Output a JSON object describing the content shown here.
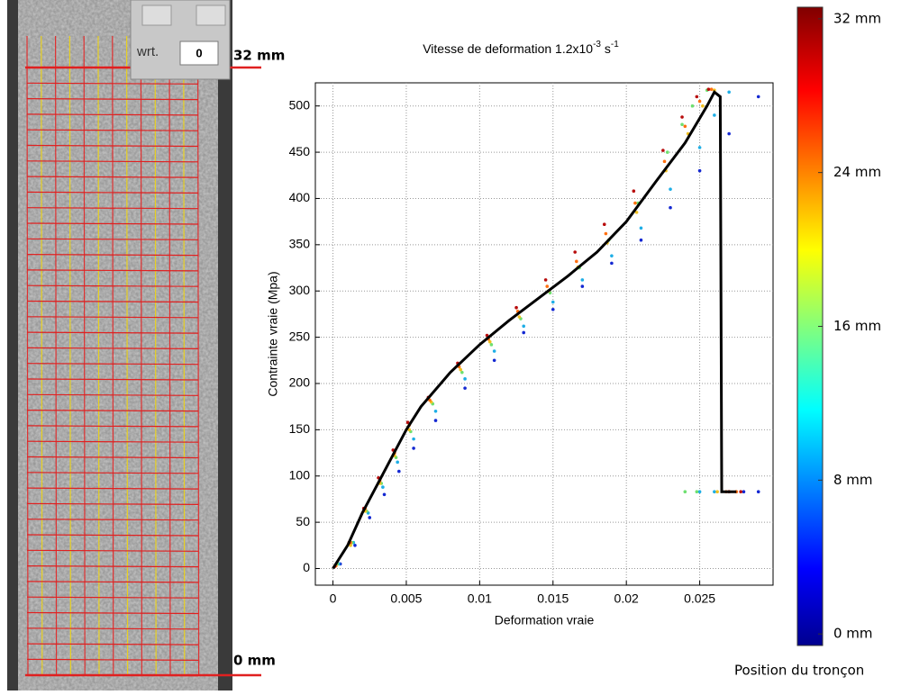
{
  "photo_panel": {
    "wrt_label": "wrt.",
    "wrt_value": "0",
    "top_label": "32 mm",
    "bottom_label": "0 mm"
  },
  "chart_data": {
    "type": "scatter",
    "title": {
      "text": "Vitesse de deformation 1.2x10",
      "exp": "-3",
      "unit": " s",
      "unit_exp": "-1"
    },
    "x_label": "Deformation vraie",
    "y_label": "Contrainte vraie (Mpa)",
    "xlim": [
      -0.0012,
      0.03
    ],
    "ylim": [
      -18,
      525
    ],
    "xticks": [
      0,
      0.005,
      0.01,
      0.015,
      0.02,
      0.025
    ],
    "yticks": [
      0,
      50,
      100,
      150,
      200,
      250,
      300,
      350,
      400,
      450,
      500
    ],
    "grid": true,
    "series": [
      {
        "style": "dots",
        "color": "#1428d2",
        "x": [
          0.0005,
          0.0015,
          0.0025,
          0.0035,
          0.0045,
          0.0055,
          0.007,
          0.009,
          0.011,
          0.013,
          0.015,
          0.017,
          0.019,
          0.021,
          0.023,
          0.025,
          0.027,
          0.029,
          0.028,
          0.029
        ],
        "y": [
          5,
          25,
          55,
          80,
          105,
          130,
          160,
          195,
          225,
          255,
          280,
          305,
          330,
          355,
          390,
          430,
          470,
          510,
          83,
          83
        ]
      },
      {
        "style": "dots",
        "color": "#1eaee6",
        "x": [
          0.0004,
          0.0014,
          0.0024,
          0.0034,
          0.0044,
          0.0055,
          0.007,
          0.009,
          0.011,
          0.013,
          0.015,
          0.017,
          0.019,
          0.021,
          0.023,
          0.025,
          0.026,
          0.027,
          0.025,
          0.026
        ],
        "y": [
          5,
          28,
          60,
          88,
          115,
          140,
          170,
          205,
          235,
          262,
          288,
          312,
          338,
          368,
          410,
          455,
          490,
          515,
          83,
          83
        ]
      },
      {
        "style": "dots",
        "color": "#6ee070",
        "x": [
          0.0003,
          0.0013,
          0.0023,
          0.0033,
          0.0043,
          0.0053,
          0.0068,
          0.0088,
          0.0108,
          0.0128,
          0.0148,
          0.0168,
          0.0188,
          0.0208,
          0.0228,
          0.0238,
          0.0245,
          0.0255,
          0.024,
          0.0248
        ],
        "y": [
          5,
          28,
          62,
          92,
          120,
          148,
          178,
          212,
          242,
          270,
          298,
          325,
          355,
          395,
          450,
          480,
          500,
          517,
          83,
          83
        ]
      },
      {
        "style": "dots",
        "color": "#f0c020",
        "x": [
          0.0002,
          0.0012,
          0.0022,
          0.0032,
          0.0042,
          0.0052,
          0.0067,
          0.0087,
          0.0107,
          0.0127,
          0.0147,
          0.0167,
          0.0187,
          0.0207,
          0.0227,
          0.0242,
          0.0252,
          0.026,
          0.0262,
          0.027
        ],
        "y": [
          3,
          25,
          62,
          92,
          122,
          150,
          180,
          215,
          245,
          272,
          300,
          326,
          352,
          385,
          430,
          470,
          500,
          517,
          83,
          83
        ]
      },
      {
        "style": "dots",
        "color": "#ff7010",
        "x": [
          0.0002,
          0.0012,
          0.0022,
          0.0032,
          0.0042,
          0.0052,
          0.0066,
          0.0086,
          0.0106,
          0.0126,
          0.0146,
          0.0166,
          0.0186,
          0.0206,
          0.0226,
          0.024,
          0.025,
          0.0258,
          0.0268,
          0.0275
        ],
        "y": [
          3,
          28,
          65,
          95,
          125,
          155,
          182,
          218,
          248,
          278,
          305,
          332,
          362,
          395,
          440,
          478,
          505,
          518,
          83,
          83
        ]
      },
      {
        "style": "dots",
        "color": "#b80c0c",
        "x": [
          0.0001,
          0.0011,
          0.0021,
          0.0031,
          0.0041,
          0.0051,
          0.0065,
          0.0085,
          0.0105,
          0.0125,
          0.0145,
          0.0165,
          0.0185,
          0.0205,
          0.0225,
          0.0238,
          0.0248,
          0.0256,
          0.027,
          0.0278
        ],
        "y": [
          2,
          28,
          65,
          98,
          128,
          158,
          185,
          222,
          252,
          282,
          312,
          342,
          372,
          408,
          452,
          488,
          510,
          518,
          83,
          83
        ]
      },
      {
        "style": "line",
        "color": "#000000",
        "x": [
          0,
          0.001,
          0.002,
          0.003,
          0.004,
          0.005,
          0.006,
          0.008,
          0.01,
          0.012,
          0.014,
          0.016,
          0.018,
          0.02,
          0.022,
          0.024,
          0.0255,
          0.026,
          0.0264,
          0.0265,
          0.0275
        ],
        "y": [
          0,
          25,
          60,
          90,
          120,
          150,
          175,
          212,
          242,
          268,
          292,
          316,
          342,
          375,
          418,
          460,
          500,
          515,
          510,
          83,
          83
        ]
      }
    ]
  },
  "colorbar": {
    "title": "Position du tronçon",
    "lim": [
      -0.6,
      32.6
    ],
    "ticks": [
      {
        "value": 32,
        "label": "32 mm"
      },
      {
        "value": 24,
        "label": "24 mm"
      },
      {
        "value": 16,
        "label": "16 mm"
      },
      {
        "value": 8,
        "label": "8 mm"
      },
      {
        "value": 0,
        "label": "0 mm"
      }
    ]
  }
}
